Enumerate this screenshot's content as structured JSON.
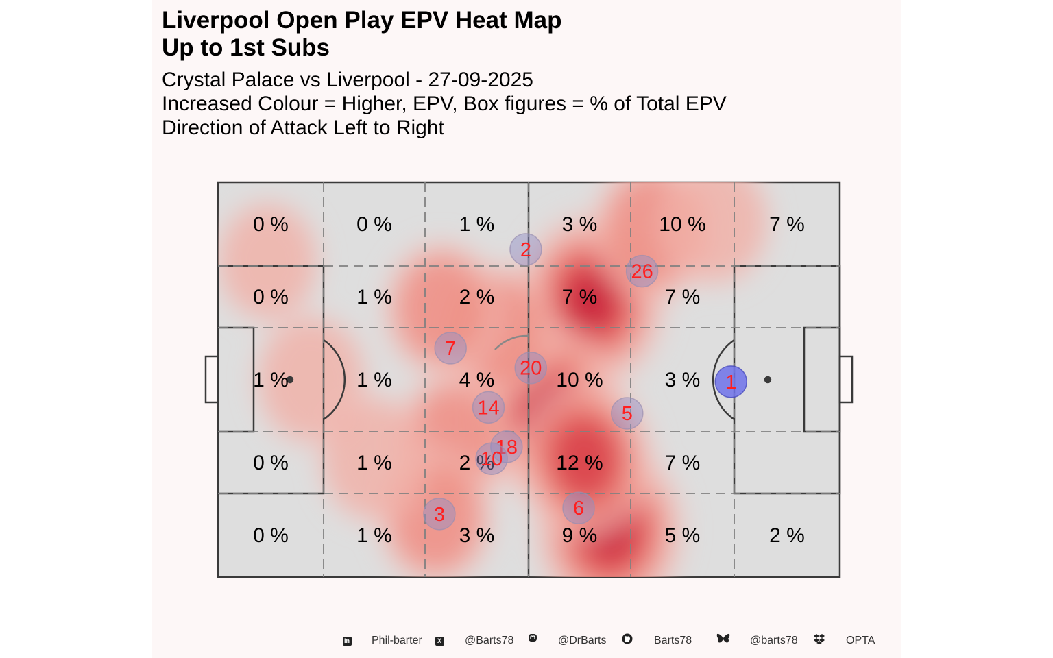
{
  "chart_data": {
    "type": "heatmap",
    "title": [
      "Liverpool  Open Play EPV Heat Map",
      "Up to 1st Subs"
    ],
    "subtitle": [
      "Crystal Palace vs Liverpool - 27-09-2025",
      "Increased Colour = Higher, EPV, Box figures = % of Total EPV",
      "Direction of Attack Left to Right"
    ],
    "grid_percentages": [
      [
        "0 %",
        "0 %",
        "1 %",
        "3 %",
        "10 %",
        "7 %"
      ],
      [
        "0 %",
        "1 %",
        "2 %",
        "7 %",
        "7 %",
        ""
      ],
      [
        "1 %",
        "1 %",
        "4 %",
        "10 %",
        "3 %",
        ""
      ],
      [
        "0 %",
        "1 %",
        "2 %",
        "12 %",
        "7 %",
        ""
      ],
      [
        "0 %",
        "1 %",
        "3 %",
        "9 %",
        "5 %",
        "2 %"
      ]
    ],
    "players": [
      {
        "number": "2",
        "x": 0.495,
        "y": 0.17
      },
      {
        "number": "26",
        "x": 0.682,
        "y": 0.225
      },
      {
        "number": "7",
        "x": 0.374,
        "y": 0.42
      },
      {
        "number": "20",
        "x": 0.503,
        "y": 0.47
      },
      {
        "number": "1",
        "x": 0.825,
        "y": 0.505
      },
      {
        "number": "14",
        "x": 0.435,
        "y": 0.57
      },
      {
        "number": "5",
        "x": 0.658,
        "y": 0.585
      },
      {
        "number": "18",
        "x": 0.464,
        "y": 0.67
      },
      {
        "number": "10",
        "x": 0.44,
        "y": 0.7
      },
      {
        "number": "6",
        "x": 0.58,
        "y": 0.825
      },
      {
        "number": "3",
        "x": 0.356,
        "y": 0.84
      }
    ],
    "density_hotspots": [
      {
        "x": 0.6,
        "y": 0.3,
        "weight": 1.0
      },
      {
        "x": 0.53,
        "y": 0.58,
        "weight": 1.0
      },
      {
        "x": 0.63,
        "y": 0.88,
        "weight": 1.0
      },
      {
        "x": 0.59,
        "y": 0.7,
        "weight": 0.8
      },
      {
        "x": 0.7,
        "y": 0.12,
        "weight": 0.55
      },
      {
        "x": 0.45,
        "y": 0.38,
        "weight": 0.5
      },
      {
        "x": 0.36,
        "y": 0.32,
        "weight": 0.45
      },
      {
        "x": 0.38,
        "y": 0.65,
        "weight": 0.45
      },
      {
        "x": 0.35,
        "y": 0.85,
        "weight": 0.45
      },
      {
        "x": 0.15,
        "y": 0.5,
        "weight": 0.4
      },
      {
        "x": 0.25,
        "y": 0.7,
        "weight": 0.35
      },
      {
        "x": 0.08,
        "y": 0.2,
        "weight": 0.25
      },
      {
        "x": 0.8,
        "y": 0.1,
        "weight": 0.35
      }
    ],
    "attack_direction": "left-to-right",
    "colors": {
      "pitch": "#dedede",
      "lines": "#3a3a3a",
      "grid": "#888888",
      "density_low": "#f3c7c2",
      "density_high": "#c20f33",
      "player_fill": "#6f72ea",
      "player_number": "#ff1f1f"
    }
  },
  "footer": {
    "items": [
      {
        "icon": "linkedin-icon",
        "text": "Phil-barter"
      },
      {
        "icon": "x-twitter-icon",
        "text": "@Barts78"
      },
      {
        "icon": "mastodon-icon",
        "text": "@DrBarts"
      },
      {
        "icon": "github-icon",
        "text": "Barts78"
      },
      {
        "icon": "bluesky-icon",
        "text": "@barts78"
      },
      {
        "icon": "dropbox-icon",
        "text": "OPTA"
      }
    ]
  }
}
